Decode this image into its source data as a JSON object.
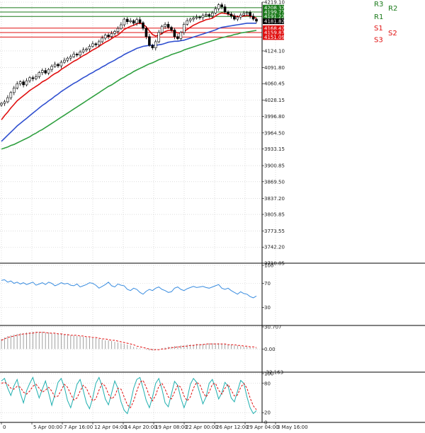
{
  "chart_data": [
    {
      "type": "candlestick",
      "panel": "price",
      "ylim": [
        3710.85,
        4219.1
      ],
      "y_ticks": [
        "4219.10",
        "4124.10",
        "4091.80",
        "4060.45",
        "4028.15",
        "3996.80",
        "3964.50",
        "3933.15",
        "3900.85",
        "3869.50",
        "3837.20",
        "3805.85",
        "3773.55",
        "3742.20",
        "3710.85"
      ],
      "y_tick_values": [
        4219.1,
        4124.1,
        4091.8,
        4060.45,
        4028.15,
        3996.8,
        3964.5,
        3933.15,
        3900.85,
        3869.5,
        3837.2,
        3805.85,
        3773.55,
        3742.2,
        3710.85
      ],
      "x_ticks": [
        "0",
        "5 Apr 00:00",
        "7 Apr 16:00",
        "12 Apr 04:00",
        "14 Apr 20:00",
        "19 Apr 08:00",
        "22 Apr 00:00",
        "26 Apr 12:00",
        "29 Apr 04:00",
        "3 May 16:00"
      ],
      "levels": [
        {
          "label": "R3",
          "value": 4208.32,
          "color": "#1a7a1a"
        },
        {
          "label": "R2",
          "value": 4199.77,
          "color": "#1a7a1a"
        },
        {
          "label": "R1",
          "value": 4191.22,
          "color": "#1a7a1a"
        },
        {
          "label": "S1",
          "value": 4168.42,
          "color": "#e01010"
        },
        {
          "label": "S2",
          "value": 4159.87,
          "color": "#e01010"
        },
        {
          "label": "S3",
          "value": 4151.09,
          "color": "#e01010"
        }
      ],
      "last_price": {
        "value": 4181.82,
        "color": "#000000"
      },
      "closes": [
        4022,
        4025,
        4033,
        4043,
        4052,
        4060,
        4064,
        4058,
        4066,
        4072,
        4070,
        4074,
        4082,
        4086,
        4081,
        4088,
        4094,
        4098,
        4095,
        4102,
        4106,
        4110,
        4113,
        4118,
        4116,
        4122,
        4126,
        4128,
        4133,
        4138,
        4136,
        4142,
        4149,
        4155,
        4152,
        4158,
        4162,
        4168,
        4175,
        4186,
        4181,
        4183,
        4178,
        4185,
        4179,
        4168,
        4152,
        4135,
        4130,
        4142,
        4160,
        4172,
        4176,
        4170,
        4165,
        4152,
        4148,
        4160,
        4176,
        4183,
        4186,
        4188,
        4190,
        4189,
        4193,
        4195,
        4192,
        4198,
        4206,
        4214,
        4210,
        4200,
        4196,
        4192,
        4186,
        4190,
        4194,
        4197,
        4199,
        4192,
        4186,
        4182
      ],
      "series": [
        {
          "name": "",
          "color": "#e01010",
          "values": [
            3990,
            3998,
            4005,
            4013,
            4020,
            4027,
            4032,
            4037,
            4042,
            4047,
            4051,
            4055,
            4059,
            4064,
            4067,
            4071,
            4076,
            4080,
            4083,
            4088,
            4092,
            4096,
            4100,
            4104,
            4107,
            4111,
            4115,
            4118,
            4122,
            4126,
            4129,
            4133,
            4137,
            4141,
            4144,
            4148,
            4152,
            4155,
            4160,
            4166,
            4169,
            4172,
            4174,
            4177,
            4178,
            4176,
            4171,
            4163,
            4156,
            4153,
            4155,
            4158,
            4162,
            4164,
            4164,
            4162,
            4159,
            4159,
            4162,
            4166,
            4170,
            4174,
            4177,
            4180,
            4182,
            4185,
            4186,
            4188,
            4192,
            4196,
            4198,
            4197,
            4196,
            4194,
            4192,
            4191,
            4191,
            4192,
            4193,
            4192,
            4190,
            4188
          ]
        },
        {
          "name": "",
          "color": "#3050d0",
          "values": [
            3948,
            3954,
            3960,
            3966,
            3972,
            3978,
            3983,
            3988,
            3993,
            3998,
            4003,
            4008,
            4013,
            4018,
            4022,
            4027,
            4031,
            4036,
            4040,
            4045,
            4049,
            4053,
            4057,
            4061,
            4064,
            4068,
            4072,
            4075,
            4079,
            4082,
            4086,
            4089,
            4093,
            4096,
            4100,
            4103,
            4106,
            4110,
            4113,
            4117,
            4120,
            4123,
            4126,
            4129,
            4131,
            4133,
            4134,
            4135,
            4135,
            4135,
            4136,
            4137,
            4139,
            4141,
            4142,
            4143,
            4143,
            4144,
            4145,
            4147,
            4149,
            4151,
            4153,
            4155,
            4157,
            4159,
            4161,
            4163,
            4165,
            4168,
            4170,
            4171,
            4172,
            4173,
            4174,
            4175,
            4176,
            4177,
            4178,
            4178,
            4178,
            4178
          ]
        },
        {
          "name": "",
          "color": "#30a040",
          "values": [
            3933,
            3935,
            3937,
            3940,
            3942,
            3945,
            3948,
            3951,
            3954,
            3957,
            3961,
            3964,
            3968,
            3971,
            3975,
            3979,
            3983,
            3987,
            3991,
            3995,
            3999,
            4003,
            4007,
            4011,
            4015,
            4019,
            4023,
            4027,
            4031,
            4035,
            4039,
            4043,
            4047,
            4051,
            4055,
            4058,
            4062,
            4066,
            4070,
            4073,
            4077,
            4080,
            4084,
            4087,
            4090,
            4093,
            4096,
            4099,
            4101,
            4104,
            4107,
            4109,
            4112,
            4114,
            4117,
            4119,
            4121,
            4123,
            4126,
            4128,
            4130,
            4132,
            4134,
            4136,
            4138,
            4140,
            4142,
            4144,
            4146,
            4148,
            4150,
            4151,
            4153,
            4154,
            4156,
            4157,
            4159,
            4160,
            4161,
            4162,
            4163,
            4164
          ]
        }
      ]
    },
    {
      "type": "line",
      "panel": "oscillator-1",
      "ylim": [
        0,
        100
      ],
      "y_ticks": [
        "100",
        "70",
        "30"
      ],
      "y_tick_values": [
        100,
        70,
        30
      ],
      "series": [
        {
          "name": "",
          "color": "#3a8de0",
          "values": [
            75,
            76,
            72,
            74,
            70,
            72,
            69,
            71,
            68,
            70,
            72,
            67,
            69,
            71,
            68,
            72,
            70,
            66,
            68,
            71,
            69,
            70,
            67,
            66,
            69,
            64,
            66,
            68,
            71,
            70,
            67,
            62,
            65,
            68,
            72,
            66,
            64,
            69,
            67,
            66,
            60,
            58,
            62,
            60,
            55,
            52,
            57,
            60,
            58,
            62,
            64,
            60,
            58,
            55,
            56,
            62,
            64,
            60,
            58,
            61,
            63,
            65,
            63,
            64,
            65,
            63,
            62,
            64,
            66,
            68,
            62,
            60,
            62,
            58,
            55,
            52,
            56,
            53,
            52,
            48,
            46,
            49
          ]
        }
      ]
    },
    {
      "type": "bar",
      "panel": "histogram",
      "ylim": [
        -32.163,
        30.707
      ],
      "y_ticks": [
        "30.707",
        "0.00",
        "-32.163"
      ],
      "y_tick_values": [
        30.707,
        0,
        -32.163
      ],
      "values": [
        14,
        16,
        18,
        19,
        20,
        21,
        22,
        22,
        23,
        23,
        24,
        24,
        24,
        24,
        23,
        23,
        22,
        22,
        21,
        21,
        20,
        20,
        19,
        19,
        18,
        18,
        17,
        16,
        16,
        15,
        15,
        14,
        13,
        12,
        12,
        11,
        10,
        9,
        8,
        7,
        6,
        5,
        3,
        2,
        1,
        0,
        -1,
        -2,
        -2,
        -1,
        0,
        1,
        2,
        3,
        3,
        4,
        4,
        5,
        5,
        6,
        6,
        6,
        7,
        7,
        7,
        7,
        8,
        8,
        8,
        8,
        7,
        7,
        6,
        6,
        5,
        5,
        4,
        3,
        3,
        2,
        1,
        1
      ],
      "signal": [
        12,
        14,
        16,
        17,
        18,
        19,
        20,
        21,
        21,
        22,
        22,
        23,
        23,
        23,
        23,
        22,
        22,
        22,
        21,
        21,
        20,
        20,
        19,
        19,
        19,
        18,
        18,
        17,
        17,
        16,
        16,
        15,
        14,
        14,
        13,
        12,
        12,
        11,
        10,
        9,
        8,
        7,
        6,
        4,
        3,
        2,
        1,
        0,
        -1,
        -1,
        -1,
        0,
        0,
        1,
        2,
        2,
        3,
        3,
        4,
        4,
        5,
        5,
        6,
        6,
        6,
        7,
        7,
        7,
        7,
        7,
        7,
        7,
        6,
        6,
        6,
        5,
        5,
        4,
        4,
        3,
        3,
        2
      ],
      "colors": {
        "bars": "#a0a0a0",
        "signal": "#e01010"
      }
    },
    {
      "type": "line",
      "panel": "oscillator-2",
      "ylim": [
        0,
        100
      ],
      "y_ticks": [
        "100",
        "80",
        "20",
        "0"
      ],
      "y_tick_values": [
        100,
        80,
        20,
        0
      ],
      "series": [
        {
          "name": "",
          "color": "#20b0b0",
          "values": [
            85,
            90,
            70,
            55,
            75,
            88,
            60,
            40,
            65,
            80,
            92,
            70,
            50,
            68,
            85,
            60,
            35,
            58,
            82,
            90,
            72,
            45,
            30,
            52,
            78,
            88,
            65,
            40,
            28,
            50,
            80,
            92,
            74,
            48,
            36,
            60,
            85,
            70,
            42,
            25,
            18,
            40,
            70,
            88,
            92,
            70,
            45,
            30,
            52,
            80,
            90,
            68,
            40,
            32,
            58,
            84,
            76,
            50,
            30,
            48,
            78,
            90,
            82,
            60,
            38,
            52,
            80,
            88,
            70,
            48,
            60,
            82,
            74,
            50,
            42,
            64,
            86,
            80,
            52,
            30,
            18,
            24
          ]
        },
        {
          "name": "",
          "color": "#e01010",
          "values": [
            80,
            82,
            78,
            70,
            68,
            74,
            72,
            62,
            58,
            64,
            74,
            78,
            70,
            62,
            66,
            72,
            64,
            52,
            54,
            66,
            78,
            72,
            58,
            46,
            50,
            64,
            76,
            70,
            56,
            44,
            48,
            66,
            80,
            74,
            58,
            48,
            54,
            70,
            68,
            52,
            36,
            30,
            44,
            64,
            82,
            86,
            72,
            54,
            44,
            56,
            74,
            80,
            68,
            52,
            48,
            62,
            76,
            72,
            54,
            44,
            52,
            70,
            82,
            78,
            62,
            52,
            62,
            78,
            80,
            66,
            58,
            70,
            78,
            66,
            54,
            56,
            72,
            80,
            70,
            50,
            34,
            26
          ]
        }
      ]
    }
  ]
}
